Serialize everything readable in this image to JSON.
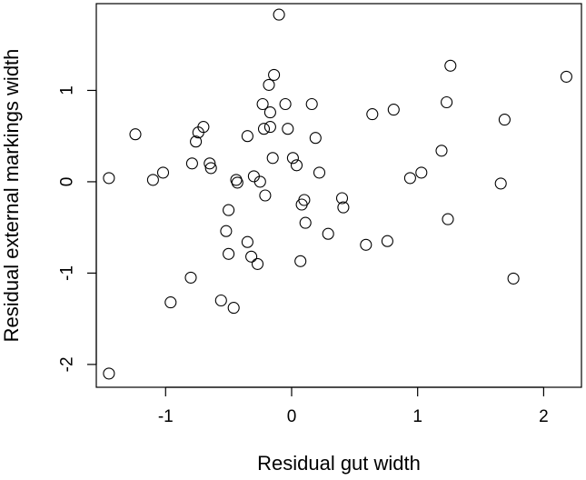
{
  "chart_data": {
    "type": "scatter",
    "title": "",
    "xlabel": "Residual gut width",
    "ylabel": "Residual external markings width",
    "xlim": [
      -1.55,
      2.3
    ],
    "ylim": [
      -2.25,
      1.95
    ],
    "xticks": [
      -1,
      0,
      1,
      2
    ],
    "xtick_labels": [
      "-1",
      "0",
      "1",
      "2"
    ],
    "yticks": [
      -2,
      -1,
      0,
      1
    ],
    "ytick_labels": [
      "-2",
      "-1",
      "0",
      "1"
    ],
    "grid": false,
    "legend": "none",
    "marker": "open-circle",
    "points": [
      {
        "x": -1.45,
        "y": 0.04
      },
      {
        "x": -1.45,
        "y": -2.1
      },
      {
        "x": -1.24,
        "y": 0.52
      },
      {
        "x": -1.1,
        "y": 0.02
      },
      {
        "x": -1.02,
        "y": 0.1
      },
      {
        "x": -0.96,
        "y": -1.32
      },
      {
        "x": -0.8,
        "y": -1.05
      },
      {
        "x": -0.79,
        "y": 0.2
      },
      {
        "x": -0.76,
        "y": 0.44
      },
      {
        "x": -0.74,
        "y": 0.54
      },
      {
        "x": -0.7,
        "y": 0.6
      },
      {
        "x": -0.65,
        "y": 0.2
      },
      {
        "x": -0.64,
        "y": 0.15
      },
      {
        "x": -0.56,
        "y": -1.3
      },
      {
        "x": -0.52,
        "y": -0.54
      },
      {
        "x": -0.5,
        "y": -0.31
      },
      {
        "x": -0.5,
        "y": -0.79
      },
      {
        "x": -0.46,
        "y": -1.38
      },
      {
        "x": -0.44,
        "y": 0.02
      },
      {
        "x": -0.43,
        "y": -0.01
      },
      {
        "x": -0.35,
        "y": 0.5
      },
      {
        "x": -0.35,
        "y": -0.66
      },
      {
        "x": -0.32,
        "y": -0.82
      },
      {
        "x": -0.3,
        "y": 0.06
      },
      {
        "x": -0.27,
        "y": -0.9
      },
      {
        "x": -0.25,
        "y": 0.0
      },
      {
        "x": -0.23,
        "y": 0.85
      },
      {
        "x": -0.22,
        "y": 0.58
      },
      {
        "x": -0.21,
        "y": -0.15
      },
      {
        "x": -0.18,
        "y": 1.06
      },
      {
        "x": -0.17,
        "y": 0.6
      },
      {
        "x": -0.17,
        "y": 0.76
      },
      {
        "x": -0.15,
        "y": 0.26
      },
      {
        "x": -0.14,
        "y": 1.17
      },
      {
        "x": -0.1,
        "y": 1.83
      },
      {
        "x": -0.05,
        "y": 0.85
      },
      {
        "x": -0.03,
        "y": 0.58
      },
      {
        "x": 0.01,
        "y": 0.26
      },
      {
        "x": 0.04,
        "y": 0.18
      },
      {
        "x": 0.07,
        "y": -0.87
      },
      {
        "x": 0.08,
        "y": -0.25
      },
      {
        "x": 0.1,
        "y": -0.2
      },
      {
        "x": 0.11,
        "y": -0.45
      },
      {
        "x": 0.16,
        "y": 0.85
      },
      {
        "x": 0.19,
        "y": 0.48
      },
      {
        "x": 0.22,
        "y": 0.1
      },
      {
        "x": 0.29,
        "y": -0.57
      },
      {
        "x": 0.4,
        "y": -0.18
      },
      {
        "x": 0.41,
        "y": -0.28
      },
      {
        "x": 0.59,
        "y": -0.69
      },
      {
        "x": 0.64,
        "y": 0.74
      },
      {
        "x": 0.76,
        "y": -0.65
      },
      {
        "x": 0.81,
        "y": 0.79
      },
      {
        "x": 0.94,
        "y": 0.04
      },
      {
        "x": 1.03,
        "y": 0.1
      },
      {
        "x": 1.19,
        "y": 0.34
      },
      {
        "x": 1.23,
        "y": 0.87
      },
      {
        "x": 1.24,
        "y": -0.41
      },
      {
        "x": 1.26,
        "y": 1.27
      },
      {
        "x": 1.66,
        "y": -0.02
      },
      {
        "x": 1.69,
        "y": 0.68
      },
      {
        "x": 1.76,
        "y": -1.06
      },
      {
        "x": 2.18,
        "y": 1.15
      }
    ]
  }
}
